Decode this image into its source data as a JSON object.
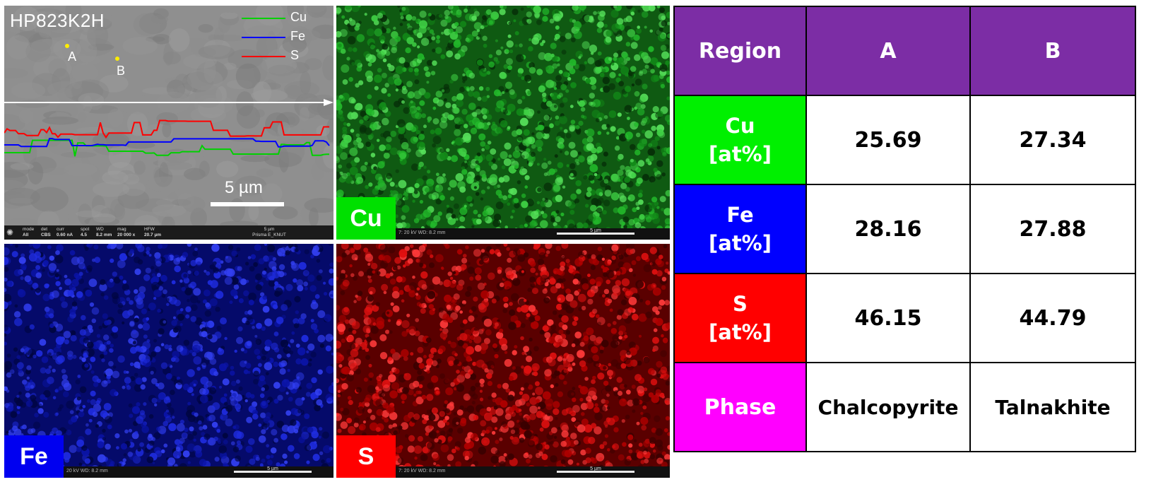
{
  "sem": {
    "sample_id": "HP823K2H",
    "points": [
      "A",
      "B"
    ],
    "legend": [
      {
        "label": "Cu",
        "color": "#00d000"
      },
      {
        "label": "Fe",
        "color": "#0000ff"
      },
      {
        "label": "S",
        "color": "#ff0000"
      }
    ],
    "scale_label": "5 µm",
    "info_bar": [
      {
        "key": "mode",
        "val": "All"
      },
      {
        "key": "det",
        "val": "CBS"
      },
      {
        "key": "curr",
        "val": "0.60 nA"
      },
      {
        "key": "spot",
        "val": "4.5"
      },
      {
        "key": "WD",
        "val": "8.2 mm"
      },
      {
        "key": "mag",
        "val": "20 000 x"
      },
      {
        "key": "HFW",
        "val": "20.7 µm"
      }
    ],
    "info_scale_label": "5 µm",
    "instrument": "Prisma E_KNUT"
  },
  "maps": [
    {
      "element": "Cu",
      "label_color": "#00e000",
      "acq": "7: 20 kV   WD: 8.2 mm",
      "scale": "5 µm"
    },
    {
      "element": "Fe",
      "label_color": "#0000f0",
      "acq": "20 kV   WD: 8.2 mm",
      "scale": "5 µm"
    },
    {
      "element": "S",
      "label_color": "#ff0000",
      "acq": "7: 20 kV   WD: 8.2 mm",
      "scale": "5 µm"
    }
  ],
  "table": {
    "header": [
      "Region",
      "A",
      "B"
    ],
    "rows": [
      {
        "element": "Cu",
        "unit": "[at%]",
        "A": "25.69",
        "B": "27.34",
        "color": "#00f000"
      },
      {
        "element": "Fe",
        "unit": "[at%]",
        "A": "28.16",
        "B": "27.88",
        "color": "#0000ff"
      },
      {
        "element": "S",
        "unit": "[at%]",
        "A": "46.15",
        "B": "44.79",
        "color": "#ff0000"
      }
    ],
    "phase_label": "Phase",
    "phases": {
      "A": "Chalcopyrite",
      "B": "Talnakhite"
    }
  }
}
